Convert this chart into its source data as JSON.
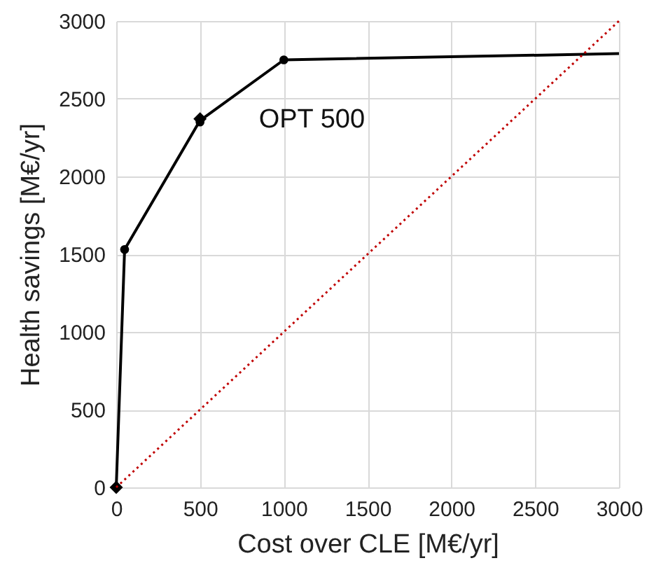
{
  "chart_data": {
    "type": "line",
    "xlabel": "Cost over CLE [M€/yr]",
    "ylabel": "Health savings [M€/yr]",
    "xlim": [
      0,
      3000
    ],
    "ylim": [
      0,
      3000
    ],
    "xticks": [
      0,
      500,
      1000,
      1500,
      2000,
      2500,
      3000
    ],
    "yticks": [
      0,
      500,
      1000,
      1500,
      2000,
      2500,
      3000
    ],
    "grid": true,
    "series": [
      {
        "color": "#000000",
        "x": [
          0,
          50,
          500,
          1000,
          3000
        ],
        "values": [
          0,
          1530,
          2360,
          2750,
          2790
        ],
        "marker": "none",
        "line_style": "solid"
      },
      {
        "type": "scatter",
        "color": "#000000",
        "x": [
          50,
          500,
          1000
        ],
        "values": [
          1530,
          2350,
          2750
        ],
        "marker": "circle"
      },
      {
        "type": "scatter",
        "color": "#000000",
        "x": [
          0,
          500
        ],
        "values": [
          0,
          2370
        ],
        "marker": "diamond"
      },
      {
        "type": "line",
        "color": "#c00000",
        "x": [
          0,
          3000
        ],
        "values": [
          0,
          3000
        ],
        "marker": "none",
        "line_style": "dotted"
      }
    ],
    "annotations": [
      {
        "text": "OPT 500",
        "x": 500,
        "y": 2370
      }
    ]
  }
}
